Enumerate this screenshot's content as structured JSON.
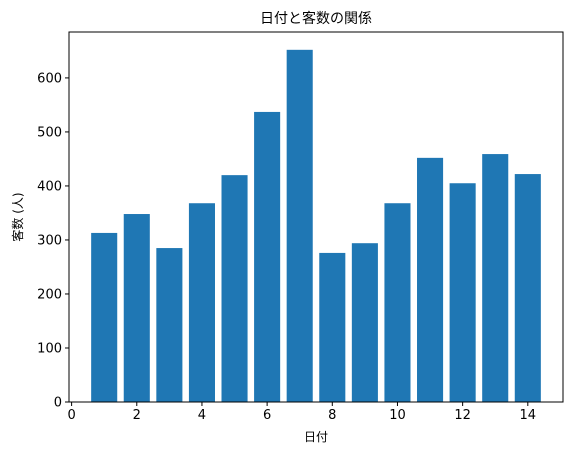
{
  "chart_data": {
    "type": "bar",
    "title": "日付と客数の関係",
    "xlabel": "日付",
    "ylabel": "客数 (人)",
    "x": [
      1,
      2,
      3,
      4,
      5,
      6,
      7,
      8,
      9,
      10,
      11,
      12,
      13,
      14
    ],
    "values": [
      313,
      348,
      285,
      368,
      420,
      537,
      652,
      276,
      294,
      368,
      452,
      405,
      459,
      422
    ],
    "xlim": [
      -0.08,
      15.08
    ],
    "ylim": [
      0,
      685
    ],
    "xticks": [
      "0",
      "2",
      "4",
      "6",
      "8",
      "10",
      "12",
      "14"
    ],
    "yticks": [
      "0",
      "100",
      "200",
      "300",
      "400",
      "500",
      "600"
    ],
    "bar_color": "#1f77b4",
    "grid": false
  }
}
